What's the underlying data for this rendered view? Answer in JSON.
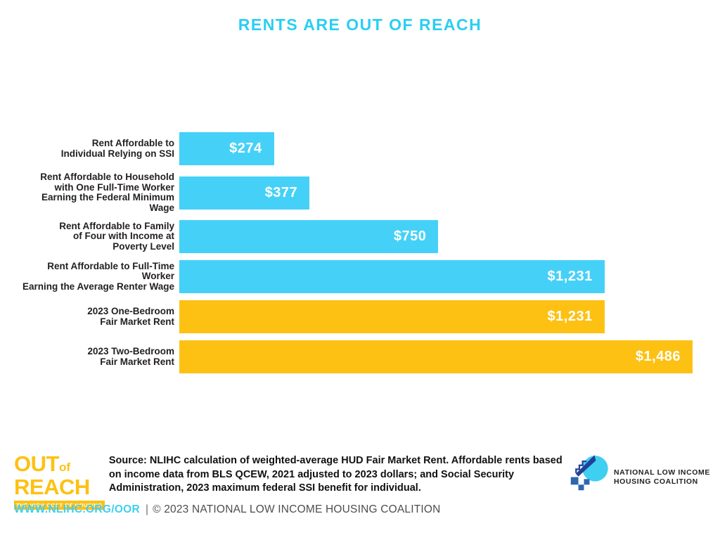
{
  "chart_data": {
    "type": "bar",
    "orientation": "horizontal",
    "title": "RENTS ARE OUT OF REACH",
    "categories": [
      "Rent Affordable to Individual Relying on SSI",
      "Rent Affordable to Household with One Full-Time Worker Earning the Federal Minimum Wage",
      "Rent Affordable to Family of Four with Income at Poverty Level",
      "Rent Affordable to Full-Time Worker Earning the Average Renter Wage",
      "2023 One-Bedroom Fair Market Rent",
      "2023 Two-Bedroom Fair Market Rent"
    ],
    "category_lines": [
      [
        "Rent Affordable to",
        "Individual Relying on SSI"
      ],
      [
        "Rent Affordable to Household",
        "with One Full-Time Worker",
        "Earning the Federal Minimum Wage"
      ],
      [
        "Rent Affordable to Family",
        "of Four with Income at",
        "Poverty Level"
      ],
      [
        "Rent Affordable to Full-Time Worker",
        "Earning the Average Renter Wage"
      ],
      [
        "2023 One-Bedroom",
        "Fair Market Rent"
      ],
      [
        "2023 Two-Bedroom",
        "Fair Market Rent"
      ]
    ],
    "values": [
      274,
      377,
      750,
      1231,
      1231,
      1486
    ],
    "value_labels": [
      "$274",
      "$377",
      "$750",
      "$1,231",
      "$1,231",
      "$1,486"
    ],
    "colors": [
      "#45D1F7",
      "#45D1F7",
      "#45D1F7",
      "#45D1F7",
      "#FDC113",
      "#FDC113"
    ],
    "xlim": [
      0,
      1486
    ],
    "grid": false,
    "legend": "none",
    "value_label_position": "inside-end"
  },
  "oor_logo": {
    "word_out": "OUT",
    "word_of": "of",
    "word_reach": "REACH",
    "tagline": "THE HIGH COST OF HOUSING"
  },
  "source": "Source: NLIHC calculation of weighted-average HUD Fair Market Rent. Affordable rents based on income data from BLS QCEW, 2021 adjusted to 2023 dollars; and Social Security Administration, 2023 maximum federal SSI benefit for individual.",
  "nlihc_logo": {
    "icon": "house-icon",
    "line1": "NATIONAL LOW INCOME",
    "line2": "HOUSING COALITION"
  },
  "footer": {
    "url": "WWW.NLIHC.ORG/OOR",
    "separator": "|",
    "copyright": "© 2023 NATIONAL LOW INCOME HOUSING COALITION"
  },
  "colors": {
    "cyan": "#45D1F7",
    "yellow": "#FDC113",
    "title_cyan": "#29CFF2",
    "text_dark": "#231F20",
    "footer_gray": "#4D4D4F",
    "navy": "#21409A",
    "mid_blue": "#2E66B0"
  }
}
